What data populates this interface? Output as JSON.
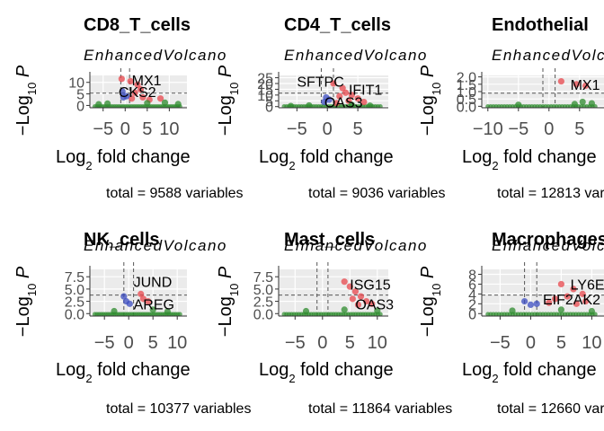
{
  "chart_data": [
    {
      "type": "scatter",
      "title": "CD8_T_cells",
      "subtitle": "EnhancedVolcano",
      "xlabel": "Log2 fold change",
      "ylabel": "-Log10 P",
      "caption": "total = 9588 variables",
      "xticks": [
        -5,
        0,
        5,
        10
      ],
      "yticks": [
        0,
        5,
        10
      ],
      "xlim": [
        -8,
        14
      ],
      "ylim": [
        -1,
        13
      ],
      "labels": [
        {
          "text": "MX1",
          "x": 1.5,
          "y": 11
        },
        {
          "text": "CKS2",
          "x": -1.5,
          "y": 6
        }
      ],
      "points": [
        {
          "x": -0.8,
          "y": 11.5,
          "group": "sig"
        },
        {
          "x": 1.2,
          "y": 10.5,
          "group": "sig"
        },
        {
          "x": 2.8,
          "y": 9,
          "group": "sig"
        },
        {
          "x": 3.5,
          "y": 7,
          "group": "sig"
        },
        {
          "x": 2.2,
          "y": 5.5,
          "group": "sig"
        },
        {
          "x": 1.5,
          "y": 3,
          "group": "sig"
        },
        {
          "x": 4,
          "y": 3.5,
          "group": "sig"
        },
        {
          "x": 5.5,
          "y": 2.5,
          "group": "sig"
        },
        {
          "x": 8,
          "y": 3,
          "group": "sig"
        },
        {
          "x": -0.6,
          "y": 6,
          "group": "p"
        },
        {
          "x": -0.4,
          "y": 3.5,
          "group": "p"
        },
        {
          "x": 0.3,
          "y": 4,
          "group": "p"
        },
        {
          "x": -4,
          "y": 0.8,
          "group": "fc"
        },
        {
          "x": 5,
          "y": 1,
          "group": "fc"
        },
        {
          "x": 9,
          "y": 1.2,
          "group": "fc"
        },
        {
          "x": -6,
          "y": 0.5,
          "group": "fc"
        },
        {
          "x": 12,
          "y": 0.6,
          "group": "fc"
        }
      ]
    },
    {
      "type": "scatter",
      "title": "CD4_T_cells",
      "subtitle": "EnhancedVolcano",
      "xlabel": "Log2 fold change",
      "ylabel": "-Log10 P",
      "caption": "total = 9036 variables",
      "xticks": [
        -5,
        0,
        5
      ],
      "yticks": [
        0,
        5,
        10,
        15,
        20,
        25
      ],
      "xlim": [
        -8,
        10
      ],
      "ylim": [
        -1,
        27
      ],
      "labels": [
        {
          "text": "SFTPC",
          "x": -5,
          "y": 22
        },
        {
          "text": "IFIT1",
          "x": 3.5,
          "y": 15
        },
        {
          "text": "OAS3",
          "x": -0.5,
          "y": 4
        }
      ],
      "points": [
        {
          "x": 1,
          "y": 20,
          "group": "sig"
        },
        {
          "x": 2.5,
          "y": 16,
          "group": "sig"
        },
        {
          "x": 3,
          "y": 12,
          "group": "sig"
        },
        {
          "x": 4,
          "y": 10,
          "group": "sig"
        },
        {
          "x": 2,
          "y": 9,
          "group": "sig"
        },
        {
          "x": 5,
          "y": 7,
          "group": "sig"
        },
        {
          "x": 3.5,
          "y": 5,
          "group": "sig"
        },
        {
          "x": 6,
          "y": 4,
          "group": "sig"
        },
        {
          "x": 1.5,
          "y": 3,
          "group": "sig"
        },
        {
          "x": -0.2,
          "y": 8,
          "group": "p"
        },
        {
          "x": 0.3,
          "y": 6,
          "group": "p"
        },
        {
          "x": -0.5,
          "y": 4,
          "group": "p"
        },
        {
          "x": -3,
          "y": 1,
          "group": "fc"
        },
        {
          "x": 4,
          "y": 1.5,
          "group": "fc"
        },
        {
          "x": -6,
          "y": 0.5,
          "group": "fc"
        },
        {
          "x": 7,
          "y": 0.8,
          "group": "fc"
        }
      ]
    },
    {
      "type": "scatter",
      "title": "Endothelial",
      "subtitle": "EnhancedVolcano",
      "xlabel": "Log2 fold change",
      "ylabel": "-Log10 P",
      "caption": "total = 12813 variables",
      "xticks": [
        -10,
        -5,
        0,
        5
      ],
      "yticks": [
        0,
        0.5,
        1,
        1.5,
        2
      ],
      "ytick_labels": [
        "0.0",
        "0.5",
        "1.0",
        "1.5",
        "2.0"
      ],
      "xlim": [
        -11,
        9
      ],
      "ylim": [
        -0.1,
        2.1
      ],
      "labels": [
        {
          "text": "MX1",
          "x": 3.5,
          "y": 1.5
        }
      ],
      "points": [
        {
          "x": 2,
          "y": 1.7,
          "group": "sig"
        },
        {
          "x": 4.5,
          "y": 1.5,
          "group": "sig"
        },
        {
          "x": 6,
          "y": 1.4,
          "group": "sig"
        },
        {
          "x": 5.5,
          "y": 0.3,
          "group": "fc"
        },
        {
          "x": 4.2,
          "y": 0.15,
          "group": "fc"
        },
        {
          "x": -5,
          "y": 0.1,
          "group": "fc"
        },
        {
          "x": 7,
          "y": 0.2,
          "group": "fc"
        }
      ]
    },
    {
      "type": "scatter",
      "title": "NK_cells",
      "subtitle": "EnhancedVolcano",
      "xlabel": "Log2 fold change",
      "ylabel": "-Log10 P",
      "caption": "total = 10377 variables",
      "xticks": [
        -5,
        0,
        5,
        10
      ],
      "yticks": [
        0,
        2.5,
        5,
        7.5
      ],
      "ytick_labels": [
        "0.0",
        "2.5",
        "5.0",
        "7.5"
      ],
      "xlim": [
        -8,
        12
      ],
      "ylim": [
        -0.5,
        9
      ],
      "labels": [
        {
          "text": "JUND",
          "x": 1,
          "y": 6.5
        },
        {
          "text": "AREG",
          "x": 1,
          "y": 2
        }
      ],
      "points": [
        {
          "x": -1,
          "y": 3.5,
          "group": "p"
        },
        {
          "x": -0.5,
          "y": 2.5,
          "group": "p"
        },
        {
          "x": 0.2,
          "y": 2,
          "group": "p"
        },
        {
          "x": 2.5,
          "y": 4,
          "group": "sig"
        },
        {
          "x": 3,
          "y": 3,
          "group": "sig"
        },
        {
          "x": 4,
          "y": 2.5,
          "group": "sig"
        },
        {
          "x": -3,
          "y": 0.5,
          "group": "fc"
        },
        {
          "x": 5,
          "y": 0.8,
          "group": "fc"
        },
        {
          "x": 8,
          "y": 0.4,
          "group": "fc"
        }
      ]
    },
    {
      "type": "scatter",
      "title": "Mast_cells",
      "subtitle": "EnhancedVolcano",
      "xlabel": "Log2 fold change",
      "ylabel": "-Log10 P",
      "caption": "total = 11864 variables",
      "xticks": [
        -5,
        0,
        5,
        10
      ],
      "yticks": [
        0,
        2.5,
        5,
        7.5
      ],
      "ytick_labels": [
        "0.0",
        "2.5",
        "5.0",
        "7.5"
      ],
      "xlim": [
        -8,
        12
      ],
      "ylim": [
        -0.5,
        9
      ],
      "labels": [
        {
          "text": "ISG15",
          "x": 5,
          "y": 6
        },
        {
          "text": "OAS3",
          "x": 6,
          "y": 2
        }
      ],
      "points": [
        {
          "x": 4,
          "y": 6.5,
          "group": "sig"
        },
        {
          "x": 5,
          "y": 5.5,
          "group": "sig"
        },
        {
          "x": 6,
          "y": 4.5,
          "group": "sig"
        },
        {
          "x": 7,
          "y": 3.5,
          "group": "sig"
        },
        {
          "x": 5.5,
          "y": 3,
          "group": "sig"
        },
        {
          "x": 8,
          "y": 2.5,
          "group": "sig"
        },
        {
          "x": 9,
          "y": 2,
          "group": "sig"
        },
        {
          "x": 6.5,
          "y": 1.8,
          "group": "sig"
        },
        {
          "x": -3,
          "y": 0.5,
          "group": "fc"
        },
        {
          "x": 4,
          "y": 0.8,
          "group": "fc"
        },
        {
          "x": 10,
          "y": 0.6,
          "group": "fc"
        }
      ]
    },
    {
      "type": "scatter",
      "title": "Macrophages",
      "subtitle": "EnhancedVolcano",
      "xlabel": "Log2 fold change",
      "ylabel": "-Log10 P",
      "caption": "total = 12660 variables",
      "xticks": [
        -5,
        0,
        5,
        10
      ],
      "yticks": [
        0,
        2,
        4,
        6,
        8
      ],
      "xlim": [
        -8,
        12
      ],
      "ylim": [
        -0.5,
        9
      ],
      "labels": [
        {
          "text": "LY6E",
          "x": 6.5,
          "y": 6
        },
        {
          "text": "EIF2AK2",
          "x": 2,
          "y": 3
        }
      ],
      "points": [
        {
          "x": 5,
          "y": 6,
          "group": "sig"
        },
        {
          "x": 7,
          "y": 5,
          "group": "sig"
        },
        {
          "x": 8.5,
          "y": 4,
          "group": "sig"
        },
        {
          "x": 6,
          "y": 3.5,
          "group": "sig"
        },
        {
          "x": 4,
          "y": 3,
          "group": "sig"
        },
        {
          "x": 9,
          "y": 2.5,
          "group": "sig"
        },
        {
          "x": 7.5,
          "y": 2,
          "group": "sig"
        },
        {
          "x": 3,
          "y": 2.2,
          "group": "sig"
        },
        {
          "x": -1,
          "y": 2.5,
          "group": "p"
        },
        {
          "x": 0,
          "y": 1.8,
          "group": "p"
        },
        {
          "x": 1,
          "y": 2,
          "group": "p"
        },
        {
          "x": -3,
          "y": 0.6,
          "group": "fc"
        },
        {
          "x": 5,
          "y": 0.8,
          "group": "fc"
        },
        {
          "x": 10,
          "y": 0.5,
          "group": "fc"
        }
      ]
    }
  ],
  "colors": {
    "sig": "#e8474c",
    "p": "#3b4cc0",
    "fc": "#2e8b2e",
    "ns": "#333333",
    "panel_bg": "#ebebeb",
    "grid": "#ffffff"
  }
}
